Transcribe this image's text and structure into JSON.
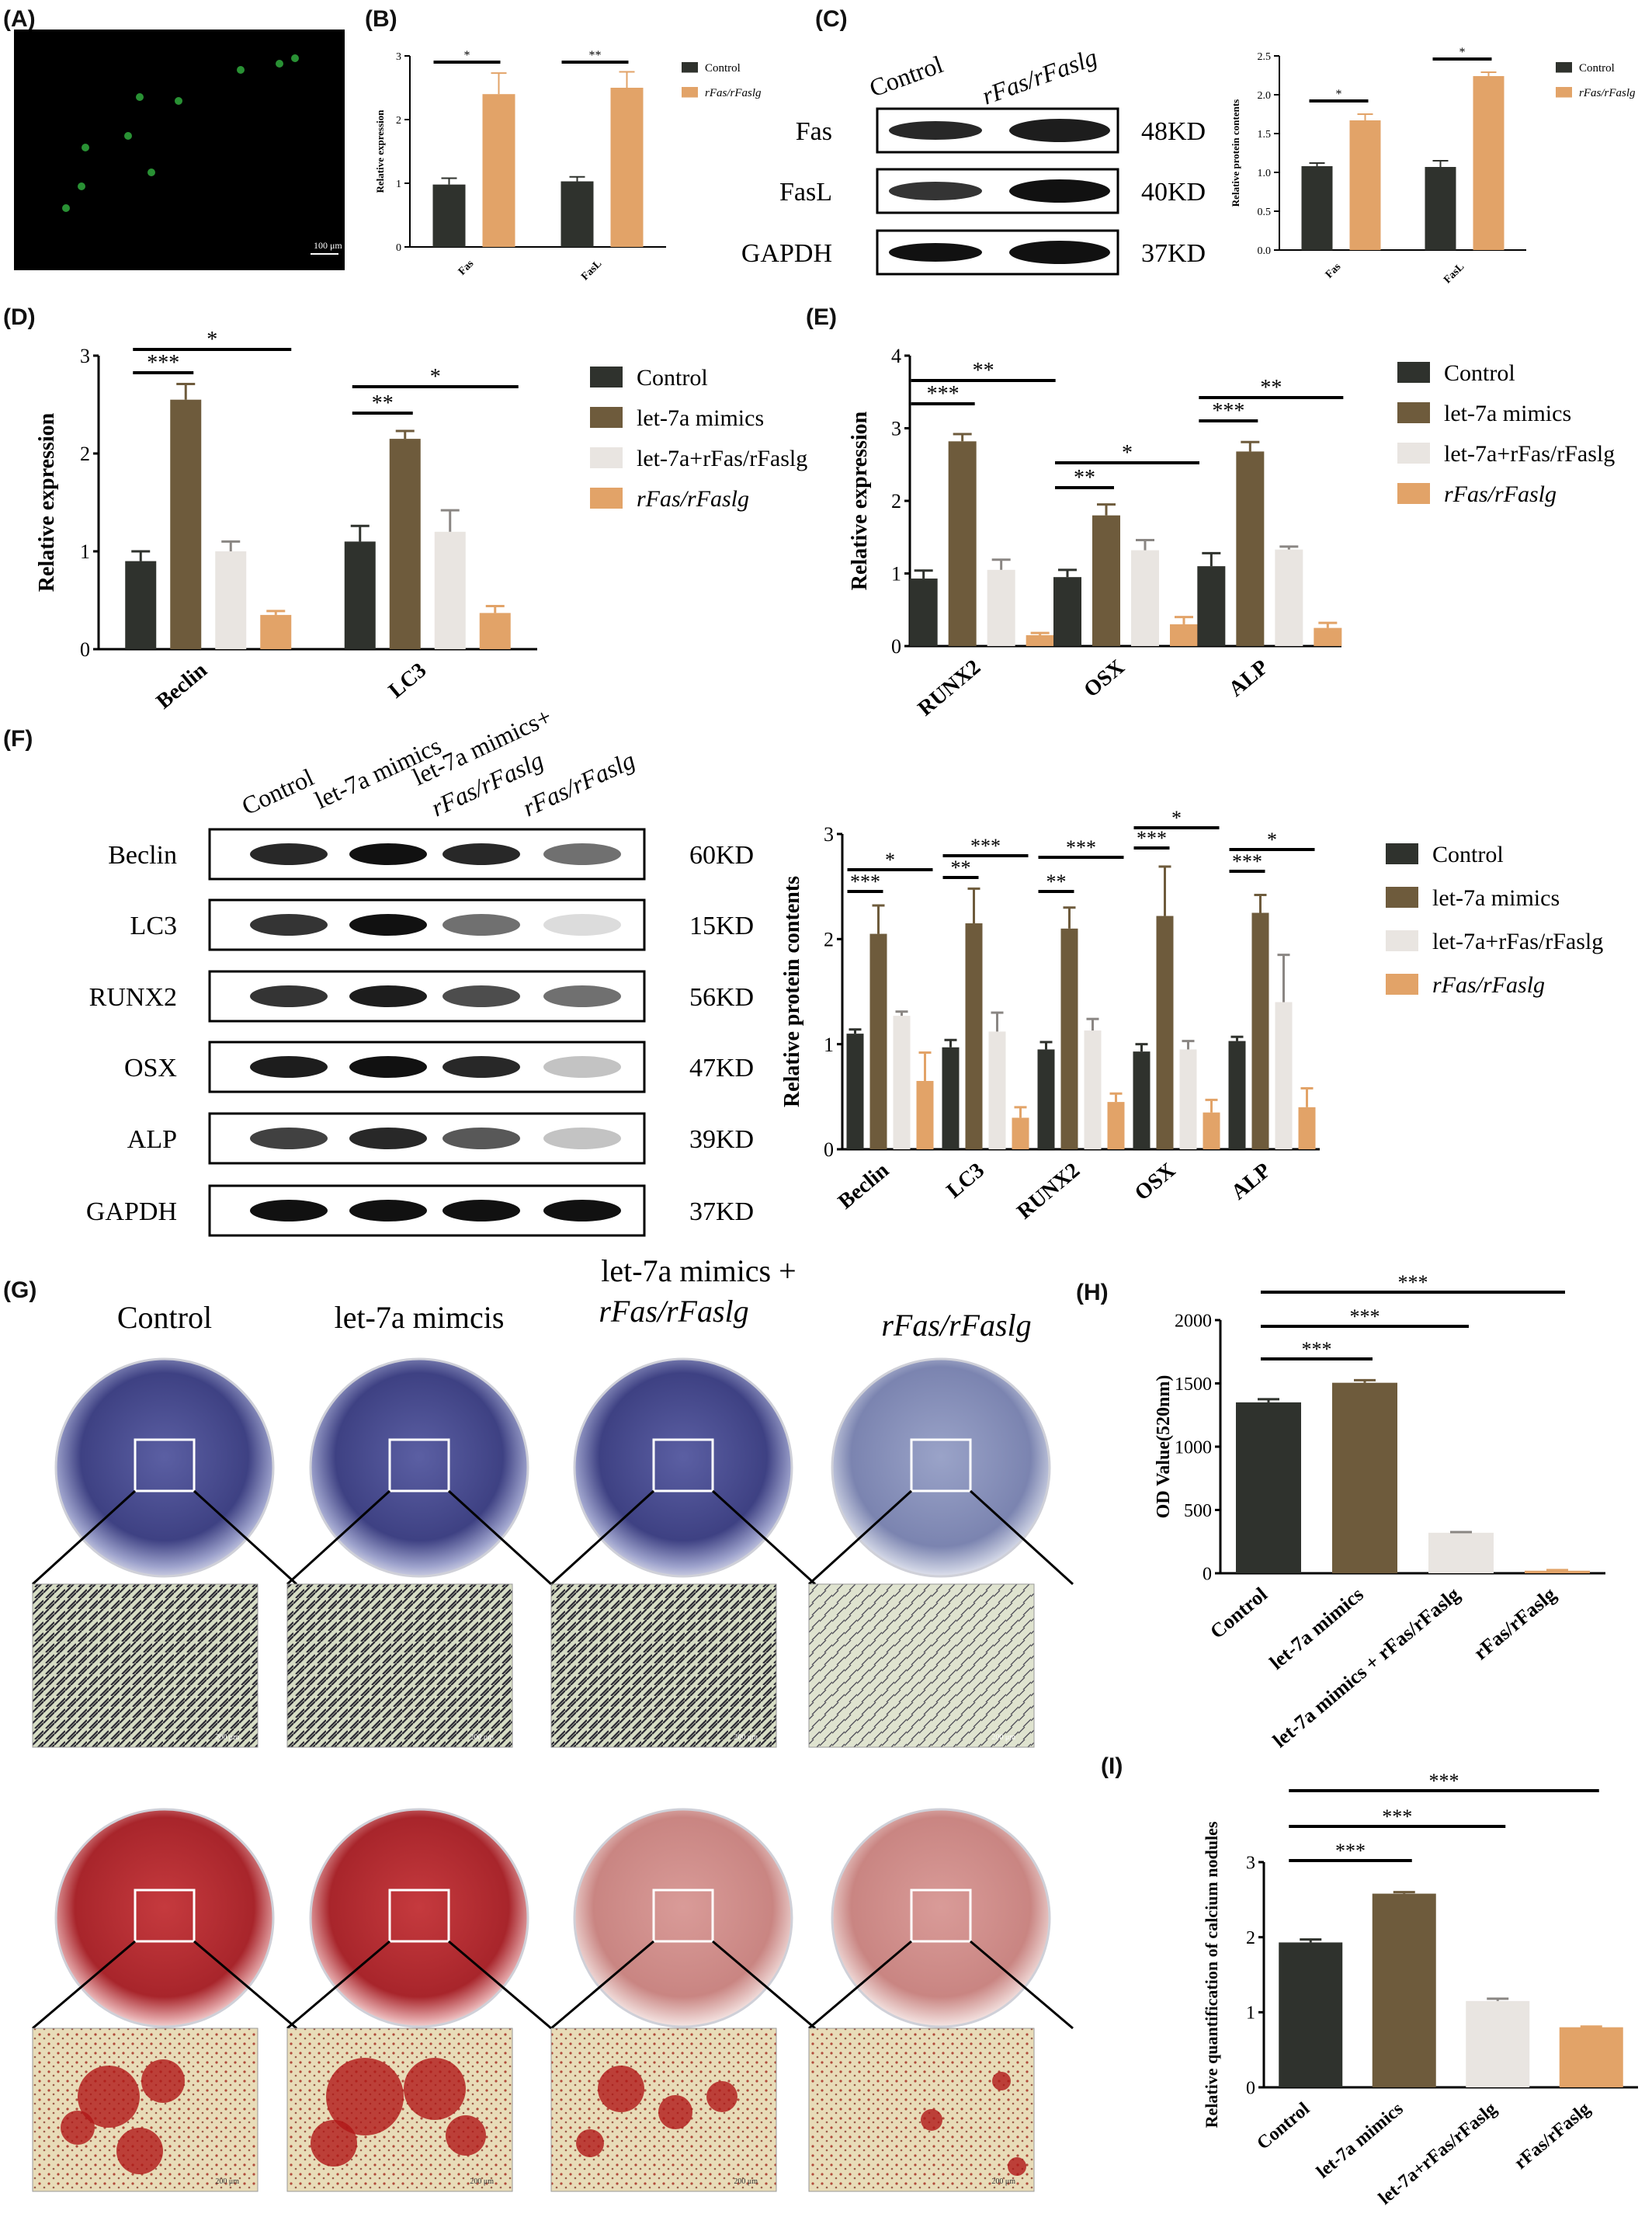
{
  "panel_letters": {
    "A": "(A)",
    "B": "(B)",
    "C": "(C)",
    "D": "(D)",
    "E": "(E)",
    "F": "(F)",
    "G": "(G)",
    "H": "(H)",
    "I": "(I)"
  },
  "panel_a": {
    "scale_bar": "100 μm"
  },
  "colors": {
    "control": "#2f322d",
    "mimics": "#6e5b3c",
    "combo": "#e9e5e1",
    "rfas": "#e2a368",
    "fluor": "#3acf4a",
    "alp_stain": "#4a4d8e",
    "ars_stain": "#b8252a"
  },
  "blots_c": {
    "lanes": [
      "Control",
      "rFas/rFaslg"
    ],
    "rows": [
      {
        "protein": "Fas",
        "size": "48KD"
      },
      {
        "protein": "FasL",
        "size": "40KD"
      },
      {
        "protein": "GAPDH",
        "size": "37KD"
      }
    ]
  },
  "blots_f": {
    "lanes": [
      "Control",
      "let-7a mimics",
      "let-7a mimics+",
      "rFas/rFaslg",
      "rFas/rFaslg"
    ],
    "rows": [
      {
        "protein": "Beclin",
        "size": "60KD"
      },
      {
        "protein": "LC3",
        "size": "15KD"
      },
      {
        "protein": "RUNX2",
        "size": "56KD"
      },
      {
        "protein": "OSX",
        "size": "47KD"
      },
      {
        "protein": "ALP",
        "size": "39KD"
      },
      {
        "protein": "GAPDH",
        "size": "37KD"
      }
    ]
  },
  "panel_g": {
    "columns": [
      "Control",
      "let-7a mimcis",
      "let-7a mimics +",
      "rFas/rFaslg",
      "rFas/rFaslg"
    ],
    "scale_bar": "200 μm"
  },
  "chart_data": [
    {
      "id": "B",
      "type": "bar",
      "categories": [
        "Fas",
        "FasL"
      ],
      "series": [
        {
          "name": "Control",
          "values": [
            0.98,
            1.03
          ],
          "errors": [
            0.1,
            0.07
          ]
        },
        {
          "name": "rFas/rFaslg",
          "values": [
            2.4,
            2.5
          ],
          "errors": [
            0.33,
            0.25
          ]
        }
      ],
      "ylabel": "Relative expression",
      "ylim": [
        0,
        3
      ],
      "yticks": [
        0,
        1,
        2,
        3
      ],
      "significance": [
        "*",
        "**"
      ]
    },
    {
      "id": "C",
      "type": "bar",
      "categories": [
        "Fas",
        "FasL"
      ],
      "series": [
        {
          "name": "Control",
          "values": [
            1.08,
            1.07
          ],
          "errors": [
            0.04,
            0.08
          ]
        },
        {
          "name": "rFas/rFaslg",
          "values": [
            1.67,
            2.24
          ],
          "errors": [
            0.08,
            0.05
          ]
        }
      ],
      "ylabel": "Relative protein contents",
      "ylim": [
        0,
        2.5
      ],
      "yticks": [
        "0.0",
        "0.5",
        "1.0",
        "1.5",
        "2.0",
        "2.5"
      ],
      "significance": [
        "*",
        "*"
      ]
    },
    {
      "id": "D",
      "type": "bar",
      "categories": [
        "Beclin",
        "LC3"
      ],
      "series": [
        {
          "name": "Control",
          "values": [
            0.9,
            1.1
          ],
          "errors": [
            0.1,
            0.16
          ]
        },
        {
          "name": "let-7a mimics",
          "values": [
            2.55,
            2.15
          ],
          "errors": [
            0.16,
            0.08
          ]
        },
        {
          "name": "let-7a+rFas/rFaslg",
          "values": [
            1.0,
            1.2
          ],
          "errors": [
            0.1,
            0.22
          ]
        },
        {
          "name": "rFas/rFaslg",
          "values": [
            0.35,
            0.37
          ],
          "errors": [
            0.04,
            0.07
          ]
        }
      ],
      "ylabel": "Relative expression",
      "ylim": [
        0,
        3
      ],
      "yticks": [
        0,
        1,
        2,
        3
      ],
      "significance": [
        "***",
        "*",
        "**",
        "*"
      ]
    },
    {
      "id": "E",
      "type": "bar",
      "categories": [
        "RUNX2",
        "OSX",
        "ALP"
      ],
      "series": [
        {
          "name": "Control",
          "values": [
            0.93,
            0.95,
            1.1
          ],
          "errors": [
            0.11,
            0.1,
            0.18
          ]
        },
        {
          "name": "let-7a mimics",
          "values": [
            2.82,
            1.8,
            2.68
          ],
          "errors": [
            0.1,
            0.15,
            0.13
          ]
        },
        {
          "name": "let-7a+rFas/rFaslg",
          "values": [
            1.05,
            1.32,
            1.33
          ],
          "errors": [
            0.14,
            0.14,
            0.04
          ]
        },
        {
          "name": "rFas/rFaslg",
          "values": [
            0.15,
            0.3,
            0.25
          ],
          "errors": [
            0.03,
            0.1,
            0.07
          ]
        }
      ],
      "ylabel": "Relative expression",
      "ylim": [
        0,
        4
      ],
      "yticks": [
        0,
        1,
        2,
        3,
        4
      ],
      "significance": [
        "***",
        "**",
        "**",
        "*",
        "***",
        "**"
      ]
    },
    {
      "id": "F",
      "type": "bar",
      "categories": [
        "Beclin",
        "LC3",
        "RUNX2",
        "OSX",
        "ALP"
      ],
      "series": [
        {
          "name": "Control",
          "values": [
            1.1,
            0.97,
            0.95,
            0.93,
            1.03
          ],
          "errors": [
            0.04,
            0.07,
            0.07,
            0.07,
            0.04
          ]
        },
        {
          "name": "let-7a mimics",
          "values": [
            2.05,
            2.15,
            2.1,
            2.22,
            2.25
          ],
          "errors": [
            0.27,
            0.33,
            0.2,
            0.47,
            0.17
          ]
        },
        {
          "name": "let-7a+rFas/rFaslg",
          "values": [
            1.27,
            1.12,
            1.13,
            0.95,
            1.4
          ],
          "errors": [
            0.04,
            0.18,
            0.11,
            0.08,
            0.45
          ]
        },
        {
          "name": "rFas/rFaslg",
          "values": [
            0.65,
            0.3,
            0.45,
            0.35,
            0.4
          ],
          "errors": [
            0.27,
            0.1,
            0.08,
            0.12,
            0.18
          ]
        }
      ],
      "ylabel": "Relative protein contents",
      "ylim": [
        0,
        3
      ],
      "yticks": [
        0,
        1,
        2,
        3
      ],
      "significance": [
        "*",
        "***",
        "***",
        "**",
        "***",
        "**",
        "*",
        "***",
        "*",
        "***"
      ]
    },
    {
      "id": "H",
      "type": "bar",
      "categories": [
        "Control",
        "let-7a mimics",
        "let-7a mimics + rFas/rFaslg",
        "rFas/rFaslg"
      ],
      "values": [
        1350,
        1505,
        320,
        20
      ],
      "errors": [
        25,
        20,
        5,
        5
      ],
      "ylabel": "OD Value(520nm)",
      "ylim": [
        0,
        2000
      ],
      "yticks": [
        0,
        500,
        1000,
        1500,
        2000
      ],
      "significance": [
        "***",
        "***",
        "***"
      ]
    },
    {
      "id": "I",
      "type": "bar",
      "categories": [
        "Control",
        "let-7a mimics",
        "let-7a+rFas/rFaslg",
        "rFas/rFaslg"
      ],
      "values": [
        1.93,
        2.58,
        1.15,
        0.8
      ],
      "errors": [
        0.04,
        0.02,
        0.03,
        0.01
      ],
      "ylabel": "Relative quantification of calcium nodules",
      "ylim": [
        0,
        3
      ],
      "yticks": [
        0,
        1,
        2,
        3
      ],
      "significance": [
        "***",
        "***",
        "***"
      ]
    }
  ]
}
